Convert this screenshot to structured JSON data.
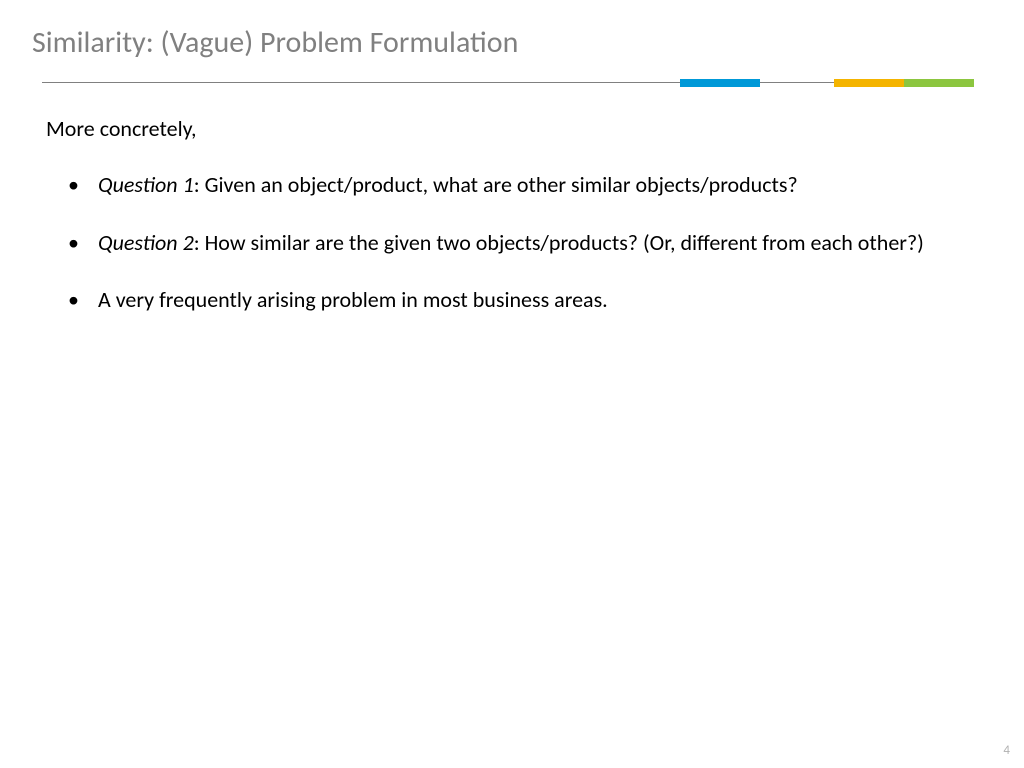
{
  "title": {
    "text": "Similarity: (Vague) Problem Formulation",
    "color": "#808080"
  },
  "divider": {
    "line_color": "#808080",
    "segments": [
      {
        "left_pct": 68.5,
        "width_pct": 8.5,
        "color": "#0099d8"
      },
      {
        "left_pct": 85.0,
        "width_pct": 7.5,
        "color": "#f4b400"
      },
      {
        "left_pct": 92.5,
        "width_pct": 7.5,
        "color": "#8cc63f"
      }
    ]
  },
  "intro": "More concretely,",
  "bullets": [
    {
      "label": "Question 1",
      "text": ": Given an object/product, what are other similar objects/products?"
    },
    {
      "label": "Question 2",
      "text": ": How similar are the given two objects/products? (Or, different from each other?)"
    },
    {
      "label": "",
      "text": "A very frequently arising problem in most business areas."
    }
  ],
  "page_number": {
    "text": "4",
    "color": "#b0b0b0"
  }
}
